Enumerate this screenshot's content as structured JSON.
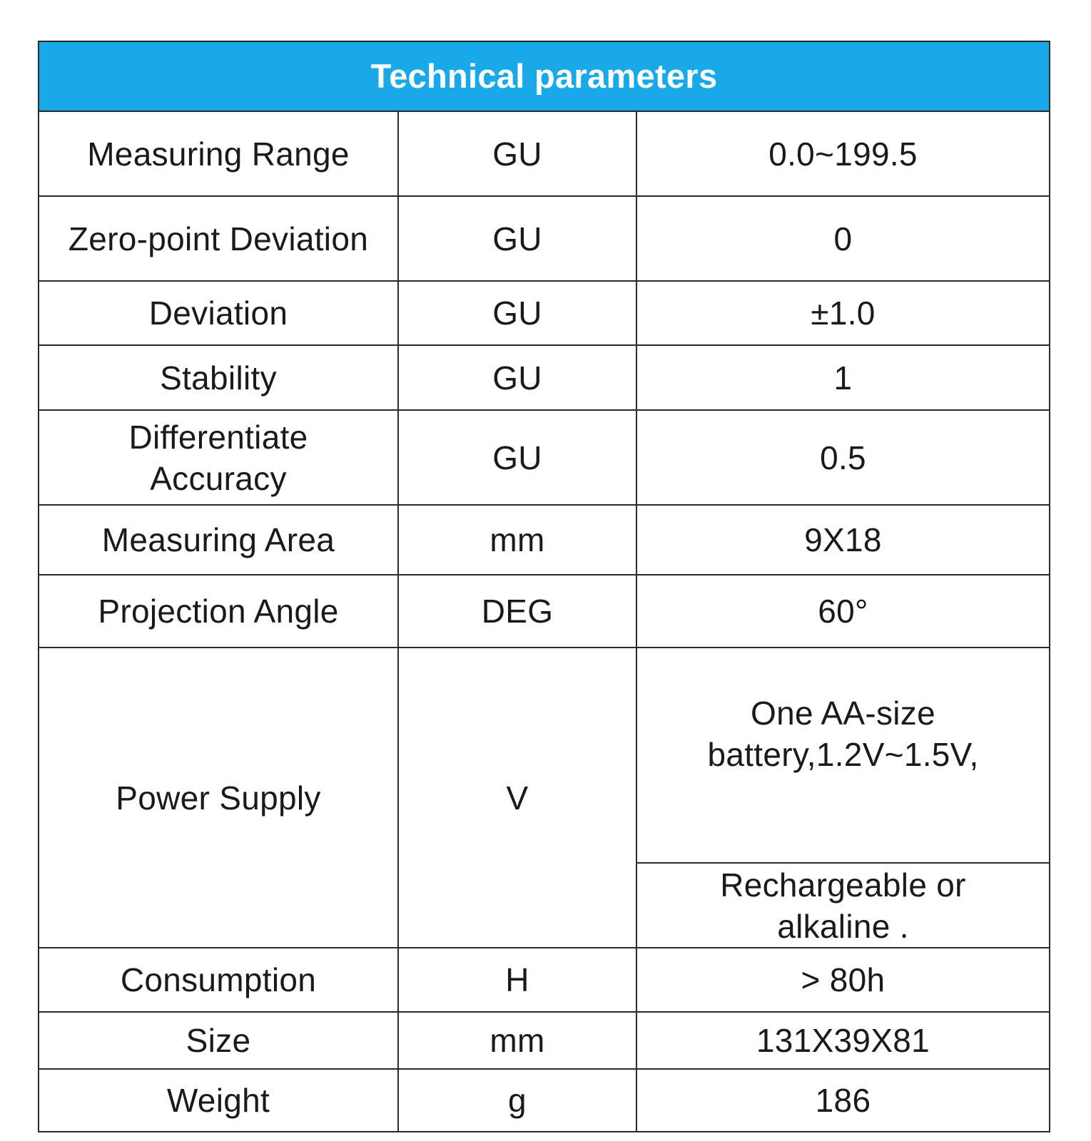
{
  "table": {
    "title": "Technical parameters",
    "header_color": "#1aa9e8",
    "rows": [
      {
        "name": "Measuring Range",
        "unit": "GU",
        "value": "0.0~199.5"
      },
      {
        "name": "Zero-point Deviation",
        "unit": "GU",
        "value": "0"
      },
      {
        "name": "Deviation",
        "unit": "GU",
        "value": "±1.0"
      },
      {
        "name": "Stability",
        "unit": "GU",
        "value": "1"
      },
      {
        "name": "Differentiate Accuracy",
        "unit": "GU",
        "value": "0.5"
      },
      {
        "name": "Measuring Area",
        "unit": "mm",
        "value": "9X18"
      },
      {
        "name": "Projection Angle",
        "unit": "DEG",
        "value": "60°"
      },
      {
        "name": "Power Supply",
        "unit": "V",
        "value": "One AA-size battery,1.2V~1.5V,",
        "value_2": "Rechargeable or alkaline ."
      },
      {
        "name": "Consumption",
        "unit": "H",
        "value": "> 80h"
      },
      {
        "name": "Size",
        "unit": "mm",
        "value": "131X39X81"
      },
      {
        "name": "Weight",
        "unit": "g",
        "value": "186"
      }
    ]
  }
}
